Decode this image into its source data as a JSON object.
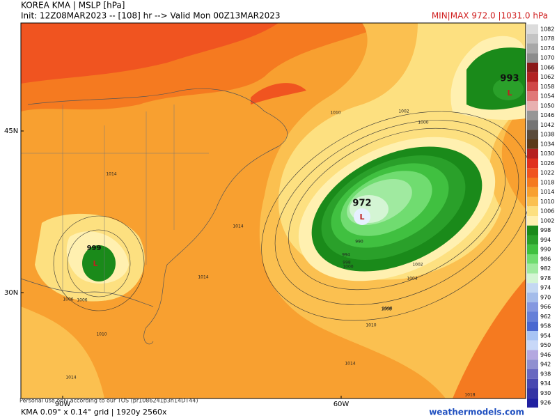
{
  "header": {
    "title": "KOREA KMA | MSLP [hPa]",
    "init": "Init: 12Z08MAR2023 -- [108] hr --> Valid Mon 00Z13MAR2023",
    "minmax": "MIN|MAX 972.0 |1031.0 hPa"
  },
  "map": {
    "lat_labels": [
      "45N",
      "30N"
    ],
    "lon_labels": [
      "90W",
      "60W"
    ],
    "centers": [
      {
        "value": "972",
        "marker": "L"
      },
      {
        "value": "993",
        "marker": "L"
      },
      {
        "value": "999",
        "marker": "L"
      }
    ],
    "isobar_labels": [
      "1010",
      "1002",
      "1000",
      "1014",
      "1014",
      "1014",
      "1006",
      "1010",
      "1008",
      "990",
      "994",
      "998",
      "1000",
      "1002",
      "1004",
      "1008",
      "1010",
      "1014",
      "1018",
      "1006",
      "1014"
    ]
  },
  "colorbar": {
    "levels": [
      "1082",
      "1078",
      "1074",
      "1070",
      "1066",
      "1062",
      "1058",
      "1054",
      "1050",
      "1046",
      "1042",
      "1038",
      "1034",
      "1030",
      "1026",
      "1022",
      "1018",
      "1014",
      "1010",
      "1006",
      "1002",
      "998",
      "994",
      "990",
      "986",
      "982",
      "978",
      "974",
      "970",
      "966",
      "962",
      "958",
      "954",
      "950",
      "946",
      "942",
      "938",
      "934",
      "930",
      "926"
    ],
    "colors": [
      "#dcdcdc",
      "#c4c4c4",
      "#a8a8a8",
      "#8c8c8c",
      "#8b1a1a",
      "#b22222",
      "#d04848",
      "#e07878",
      "#e8b0b0",
      "#969696",
      "#747474",
      "#5a4a3a",
      "#5c3a1a",
      "#b52020",
      "#e0301e",
      "#f05420",
      "#f57a20",
      "#f8a030",
      "#fbc050",
      "#fde080",
      "#fff0b0",
      "#1a8a1a",
      "#2aa02a",
      "#40c040",
      "#70dc70",
      "#a0eaa0",
      "#d4f5d4",
      "#c4d8f2",
      "#a4bcea",
      "#8498e0",
      "#6680d8",
      "#4a68d0",
      "#a8c4f4",
      "#c8d8f8",
      "#b4a8e0",
      "#9090d0",
      "#6868c0",
      "#4848b0",
      "#3434a4",
      "#2020a0"
    ]
  },
  "footer": {
    "tos": "Personal use only according to our TOS (pr1086241p3n14DT44)",
    "grid": "KMA 0.09° x 0.14° grid | 1920y 2560x",
    "site": "weathermodels.com"
  }
}
